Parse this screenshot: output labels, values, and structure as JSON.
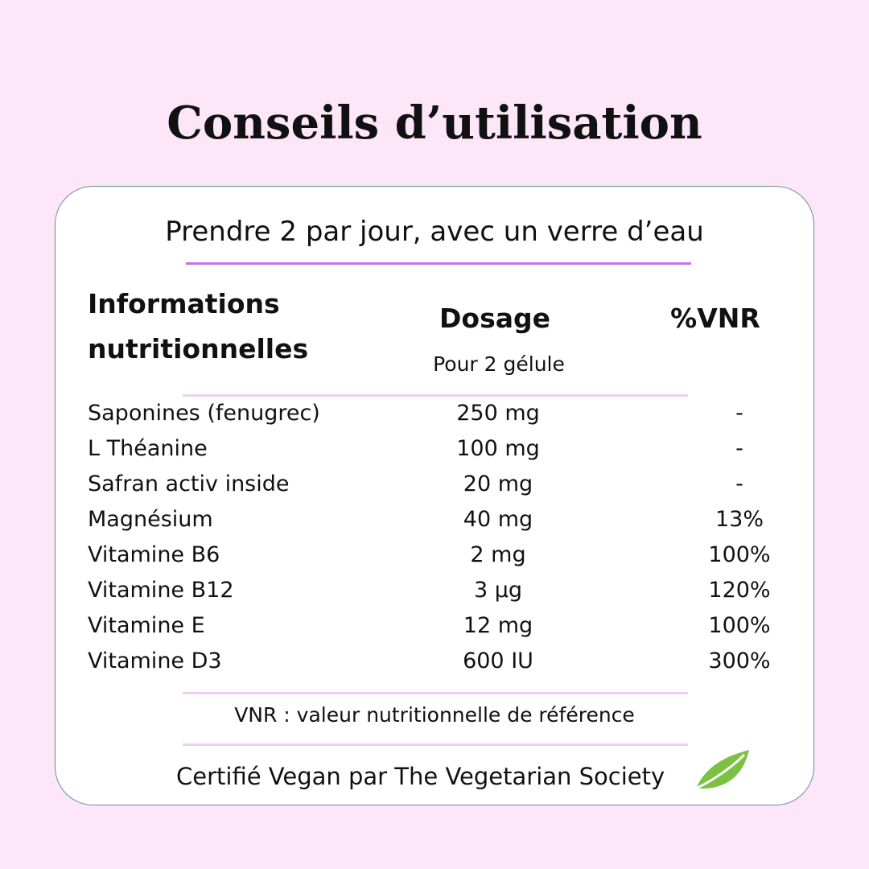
{
  "title": "Conseils d’utilisation",
  "instruction": "Prendre 2 par jour, avec un verre d’eau",
  "table": {
    "headers": [
      "Informations nutritionnelles",
      "Dosage",
      "%VNR"
    ],
    "subheader": "Pour 2 gélule",
    "rows": [
      [
        "Saponines (fenugrec)",
        "250 mg",
        "-"
      ],
      [
        "L Théanine",
        "100 mg",
        "-"
      ],
      [
        "Safran activ inside",
        "20 mg",
        "-"
      ],
      [
        "Magnésium",
        "40 mg",
        "13%"
      ],
      [
        "Vitamine B6",
        "2 mg",
        "100%"
      ],
      [
        "Vitamine B12",
        "3 µg",
        "120%"
      ],
      [
        "Vitamine E",
        "12 mg",
        "100%"
      ],
      [
        "Vitamine D3",
        "600 IU",
        "300%"
      ]
    ]
  },
  "note": "VNR : valeur nutritionnelle de référence",
  "certification": "Certifié Vegan par The Vegetarian Society"
}
